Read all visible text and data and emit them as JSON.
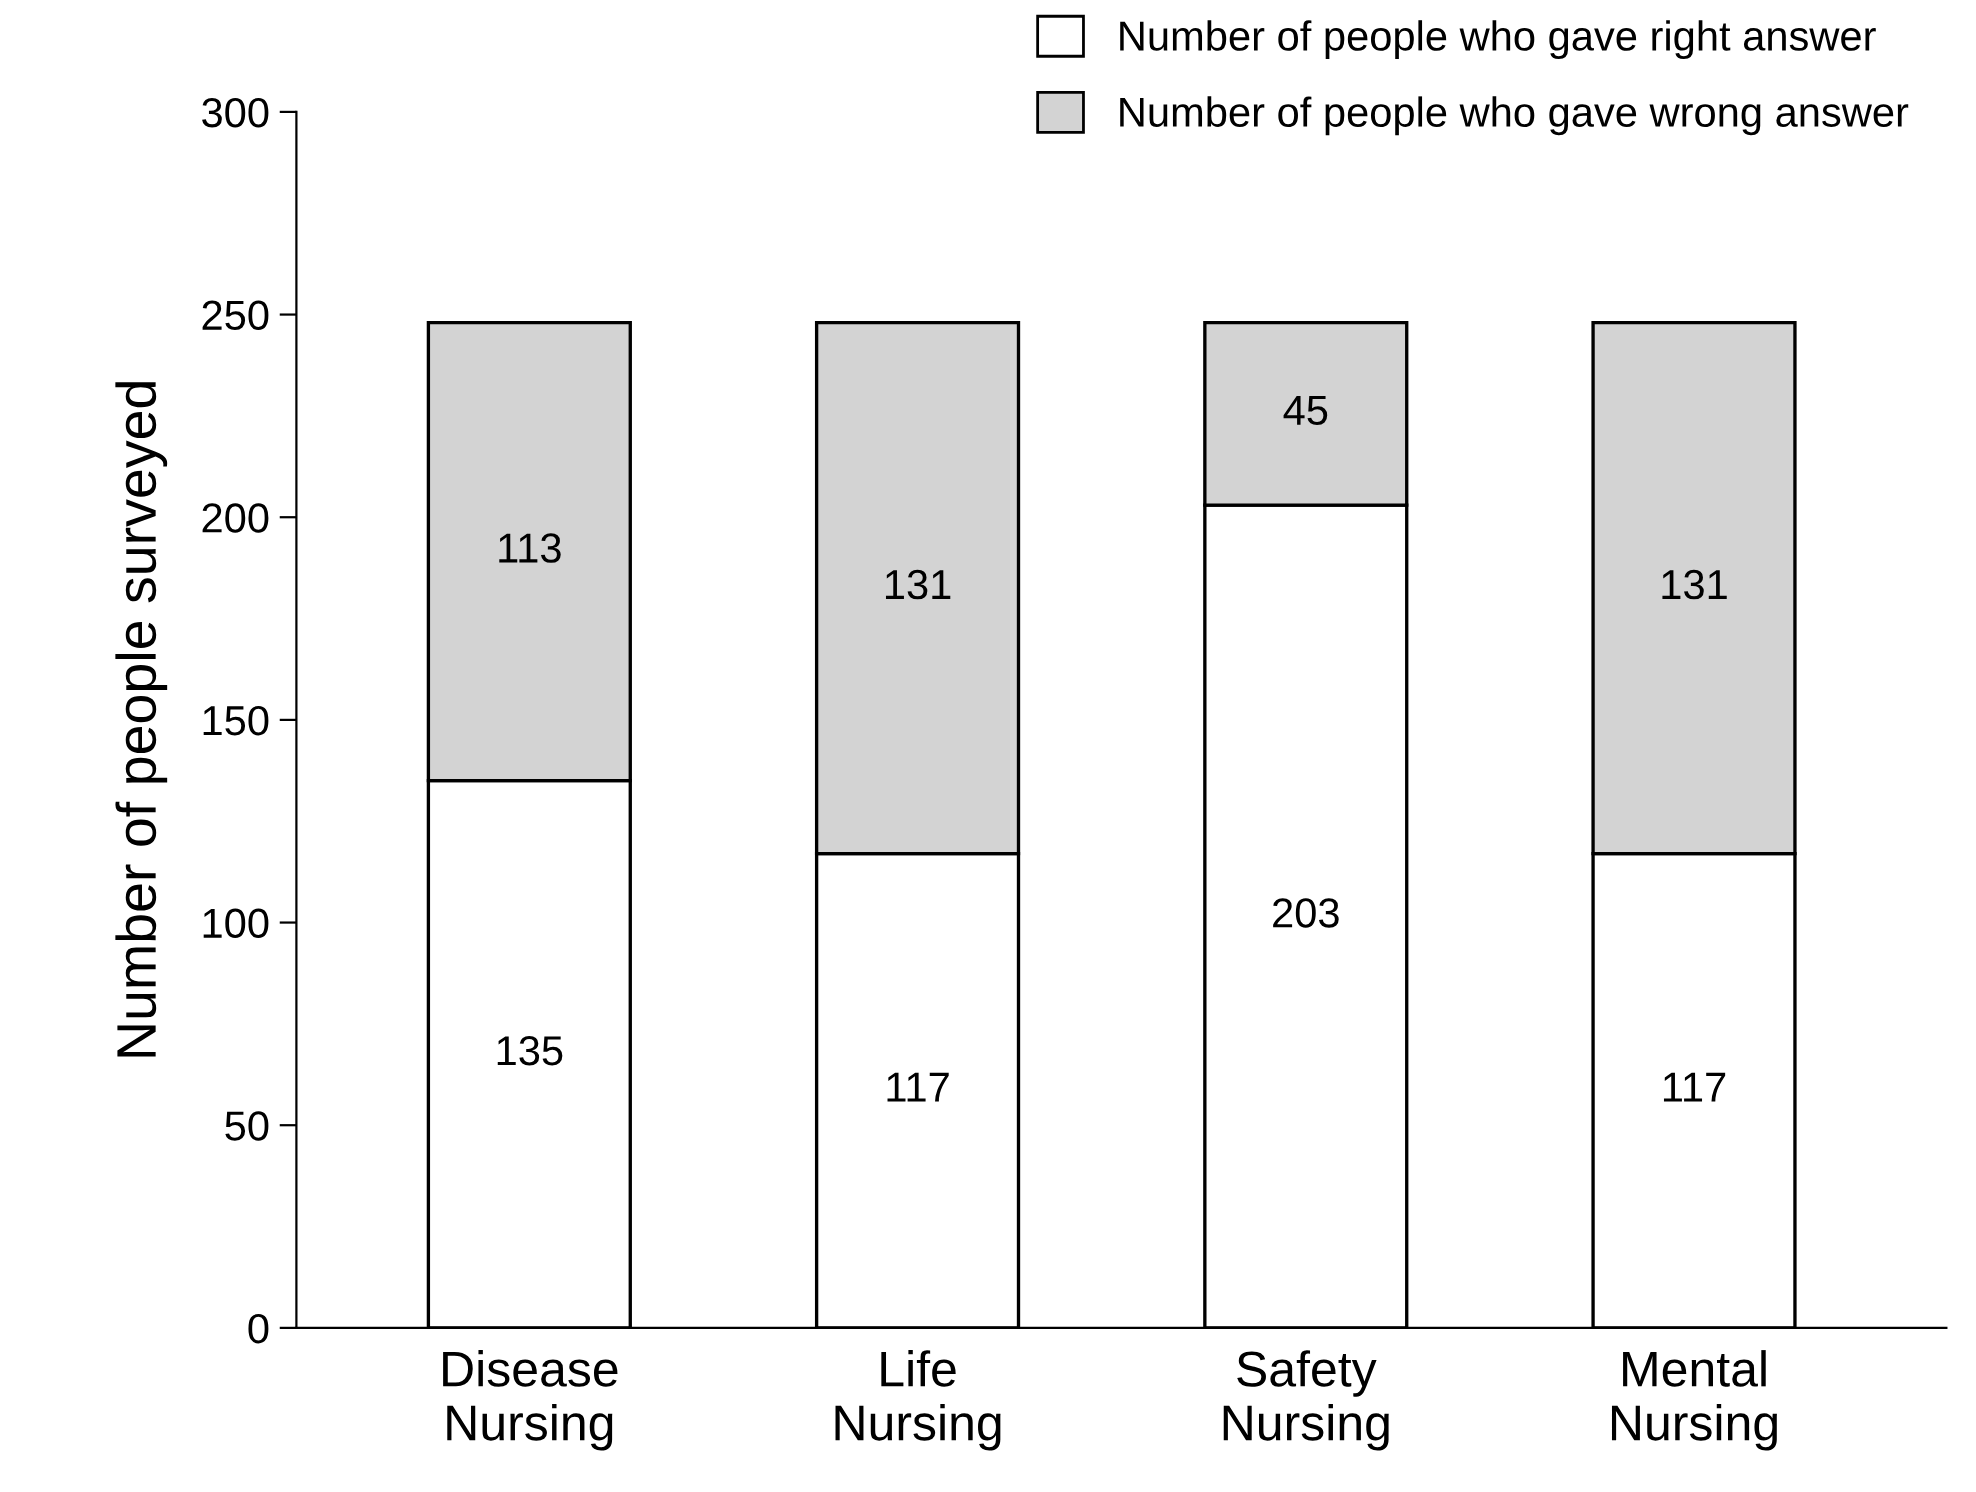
{
  "chart_data": {
    "type": "bar",
    "stacked": true,
    "ylabel": "Number of people surveyed",
    "categories": [
      "Disease\nNursing",
      "Life\nNursing",
      "Safety\nNursing",
      "Mental\nNursing"
    ],
    "series": [
      {
        "name": "Number of people who gave right answer",
        "color": "#ffffff",
        "values": [
          135,
          117,
          203,
          117
        ]
      },
      {
        "name": "Number of people who gave wrong answer",
        "color": "#d3d3d3",
        "values": [
          113,
          131,
          45,
          131
        ]
      }
    ],
    "ylim": [
      0,
      300
    ],
    "yticks": [
      0,
      50,
      100,
      150,
      200,
      250,
      300
    ],
    "data_labels": true,
    "grid": false,
    "legend": "top right"
  }
}
